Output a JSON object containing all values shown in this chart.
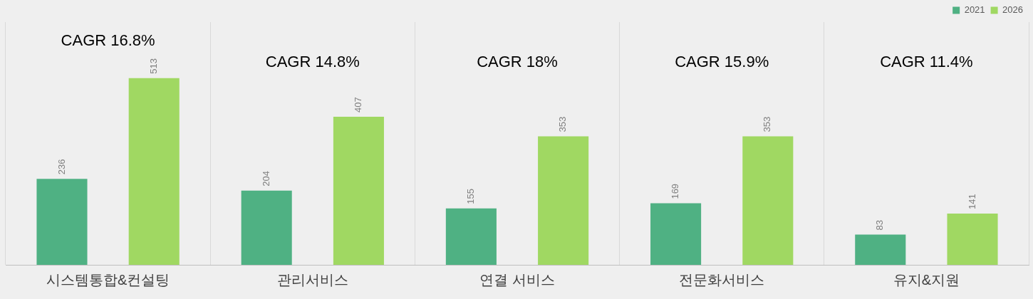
{
  "chart_data": {
    "type": "bar",
    "categories": [
      "시스템통합&컨설팅",
      "관리서비스",
      "연결 서비스",
      "전문화서비스",
      "유지&지원"
    ],
    "series": [
      {
        "name": "2021",
        "color": "#4fb183",
        "values": [
          236,
          204,
          155,
          169,
          83
        ]
      },
      {
        "name": "2026",
        "color": "#a0d862",
        "values": [
          513,
          407,
          353,
          353,
          141
        ]
      }
    ],
    "data_labels": true,
    "grid": "x",
    "legend": "top right",
    "annotations": [
      "CAGR 16.8%",
      "CAGR 14.8%",
      "CAGR 18%",
      "CAGR 15.9%",
      "CAGR 11.4%"
    ]
  }
}
